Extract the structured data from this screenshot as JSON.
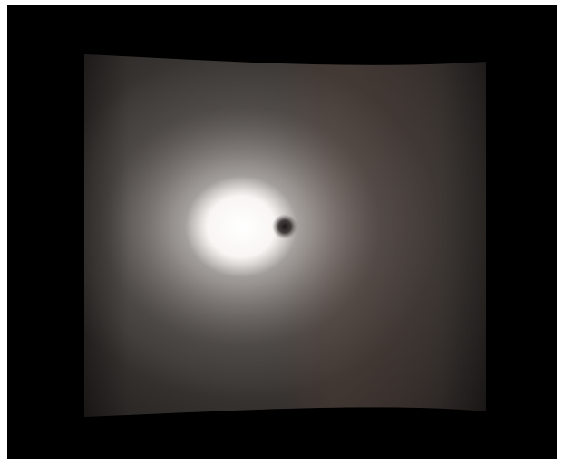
{
  "scene": {
    "background_color": "#000000",
    "frame_color": "#ffffff",
    "surface": {
      "base_color": "#3a3633",
      "edge_shadow_color": "#1f1c1b",
      "right_tint_color": "#4a3a35",
      "highlight_color": "#ffffff",
      "halo_color": "#8d8784",
      "dark_spot_color": "#1b1716"
    }
  }
}
